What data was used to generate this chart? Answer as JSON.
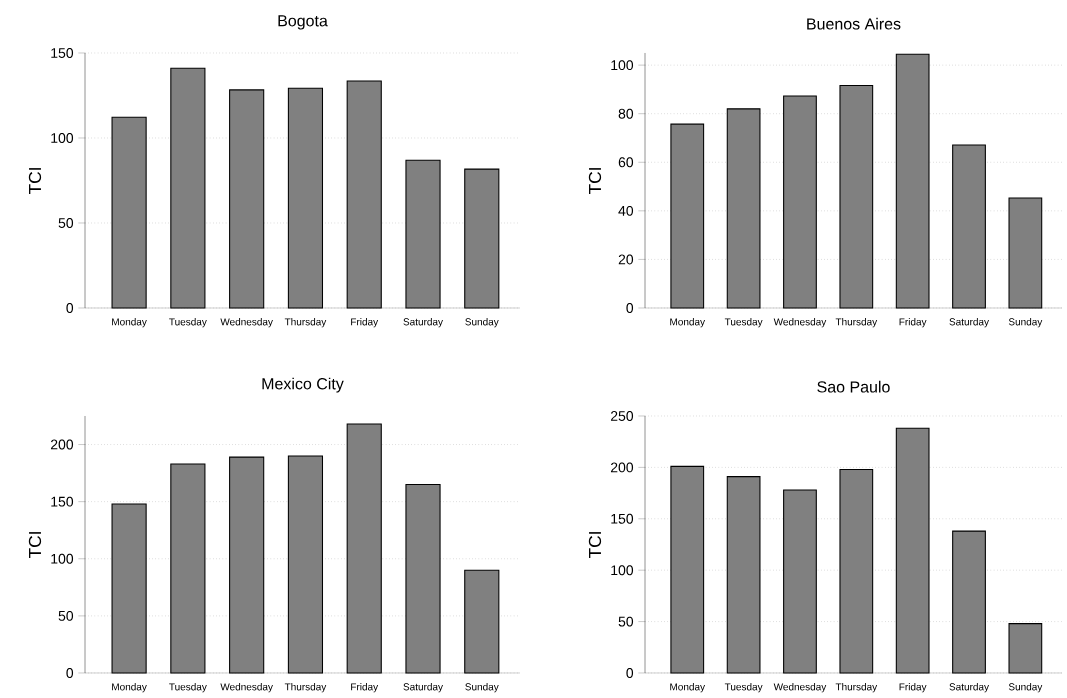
{
  "chart_data": [
    {
      "type": "bar",
      "title": "Bogota",
      "ylabel": "TCI",
      "categories": [
        "Monday",
        "Tuesday",
        "Wednesday",
        "Thursday",
        "Friday",
        "Saturday",
        "Sunday"
      ],
      "values": [
        112.2,
        141,
        128.3,
        129.3,
        133.5,
        86.9,
        81.7
      ],
      "color": "#808080",
      "ylim": [
        0,
        150
      ],
      "yticks": [
        0,
        50,
        100,
        150
      ],
      "grid": "y"
    },
    {
      "type": "bar",
      "title": "Buenos Aires",
      "ylabel": "TCI",
      "categories": [
        "Monday",
        "Tuesday",
        "Wednesday",
        "Thursday",
        "Friday",
        "Saturday",
        "Sunday"
      ],
      "values": [
        75.7,
        82,
        87.3,
        91.6,
        104.5,
        67.1,
        45.3
      ],
      "color": "#808080",
      "ylim": [
        0,
        105
      ],
      "yticks": [
        0,
        20,
        40,
        60,
        80,
        100
      ],
      "grid": "y"
    },
    {
      "type": "bar",
      "title": "Mexico City",
      "ylabel": "TCI",
      "categories": [
        "Monday",
        "Tuesday",
        "Wednesday",
        "Thursday",
        "Friday",
        "Saturday",
        "Sunday"
      ],
      "values": [
        148,
        183,
        189,
        190,
        218,
        165,
        90
      ],
      "color": "#808080",
      "ylim": [
        0,
        225
      ],
      "yticks": [
        0,
        50,
        100,
        150,
        200
      ],
      "grid": "y"
    },
    {
      "type": "bar",
      "title": "Sao Paulo",
      "ylabel": "TCI",
      "categories": [
        "Monday",
        "Tuesday",
        "Wednesday",
        "Thursday",
        "Friday",
        "Saturday",
        "Sunday"
      ],
      "values": [
        201,
        191,
        178,
        198,
        238,
        138,
        48
      ],
      "color": "#808080",
      "ylim": [
        0,
        250
      ],
      "yticks": [
        0,
        50,
        100,
        150,
        200,
        250
      ],
      "grid": "y"
    }
  ]
}
